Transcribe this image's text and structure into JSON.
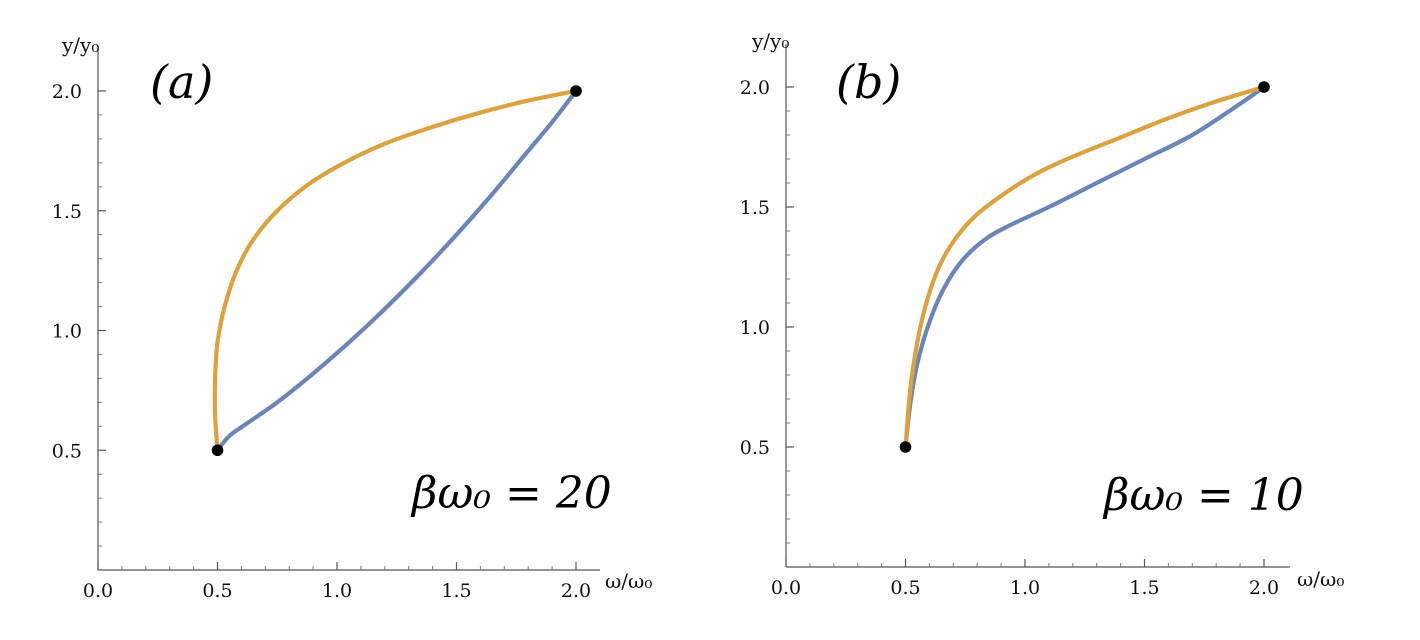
{
  "chart_data": [
    {
      "panel_label": "(a)",
      "type": "line",
      "annotation": "βω₀ = 20",
      "xlabel": "ω/ω₀",
      "ylabel": "y/y₀",
      "xlim": [
        0.0,
        2.1
      ],
      "ylim": [
        0.0,
        2.05
      ],
      "x_ticks": [
        0.0,
        0.5,
        1.0,
        1.5,
        2.0
      ],
      "x_tick_labels": [
        "0.0",
        "0.5",
        "1.0",
        "1.5",
        "2.0"
      ],
      "y_ticks": [
        0.5,
        1.0,
        1.5,
        2.0
      ],
      "y_tick_labels": [
        "0.5",
        "1.0",
        "1.5",
        "2.0"
      ],
      "series": [
        {
          "name": "blue curve",
          "color": "#6a86b8",
          "x": [
            0.5,
            0.55,
            0.62,
            0.75,
            0.9,
            1.05,
            1.2,
            1.35,
            1.5,
            1.65,
            1.8,
            1.9,
            2.0
          ],
          "y": [
            0.5,
            0.56,
            0.61,
            0.7,
            0.82,
            0.95,
            1.09,
            1.24,
            1.4,
            1.57,
            1.75,
            1.87,
            2.0
          ]
        },
        {
          "name": "orange curve",
          "color": "#dca23f",
          "x": [
            0.5,
            0.49,
            0.49,
            0.5,
            0.53,
            0.58,
            0.65,
            0.75,
            0.88,
            1.03,
            1.2,
            1.4,
            1.6,
            1.8,
            2.0
          ],
          "y": [
            0.5,
            0.65,
            0.8,
            0.95,
            1.1,
            1.25,
            1.38,
            1.5,
            1.61,
            1.7,
            1.78,
            1.85,
            1.91,
            1.96,
            2.0
          ]
        }
      ],
      "endpoints": [
        {
          "x": 0.5,
          "y": 0.5
        },
        {
          "x": 2.0,
          "y": 2.0
        }
      ]
    },
    {
      "panel_label": "(b)",
      "type": "line",
      "annotation": "βω₀ = 10",
      "xlabel": "ω/ω₀",
      "ylabel": "y/y₀",
      "xlim": [
        0.0,
        2.1
      ],
      "ylim": [
        0.0,
        2.05
      ],
      "x_ticks": [
        0.0,
        0.5,
        1.0,
        1.5,
        2.0
      ],
      "x_tick_labels": [
        "0.0",
        "0.5",
        "1.0",
        "1.5",
        "2.0"
      ],
      "y_ticks": [
        0.5,
        1.0,
        1.5,
        2.0
      ],
      "y_tick_labels": [
        "0.5",
        "1.0",
        "1.5",
        "2.0"
      ],
      "series": [
        {
          "name": "blue curve",
          "color": "#6a86b8",
          "x": [
            0.5,
            0.52,
            0.55,
            0.6,
            0.66,
            0.74,
            0.84,
            0.95,
            1.1,
            1.3,
            1.5,
            1.7,
            1.9,
            2.0
          ],
          "y": [
            0.5,
            0.68,
            0.85,
            1.02,
            1.16,
            1.28,
            1.37,
            1.43,
            1.5,
            1.6,
            1.7,
            1.8,
            1.93,
            2.0
          ]
        },
        {
          "name": "orange curve",
          "color": "#dca23f",
          "x": [
            0.5,
            0.52,
            0.55,
            0.59,
            0.64,
            0.71,
            0.8,
            0.92,
            1.05,
            1.2,
            1.4,
            1.6,
            1.8,
            2.0
          ],
          "y": [
            0.5,
            0.74,
            0.94,
            1.11,
            1.25,
            1.37,
            1.47,
            1.56,
            1.64,
            1.71,
            1.79,
            1.87,
            1.94,
            2.0
          ]
        }
      ],
      "endpoints": [
        {
          "x": 0.5,
          "y": 0.5
        },
        {
          "x": 2.0,
          "y": 2.0
        }
      ]
    }
  ]
}
